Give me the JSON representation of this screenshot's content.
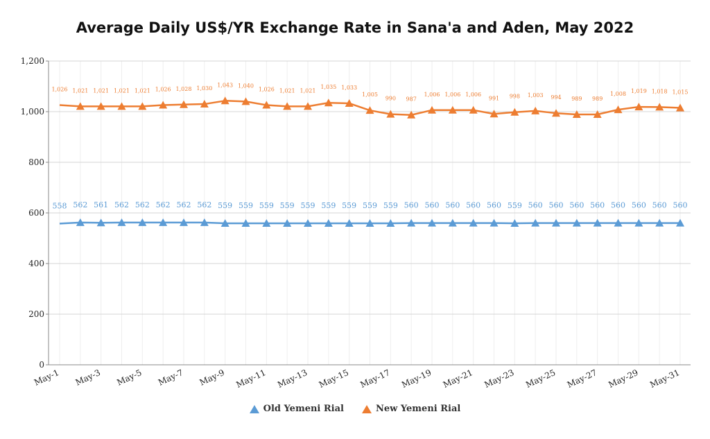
{
  "chart_data": {
    "type": "line",
    "title": "Average Daily US$/YR Exchange Rate in Sana'a and Aden, May 2022",
    "xlabel": "",
    "ylabel": "",
    "ylim": [
      0,
      1200
    ],
    "yticks": [
      0,
      200,
      400,
      600,
      800,
      1000,
      1200
    ],
    "ytick_labels": [
      "0",
      "200",
      "400",
      "600",
      "800",
      "1,000",
      "1,200"
    ],
    "categories": [
      "May-1",
      "May-2",
      "May-3",
      "May-4",
      "May-5",
      "May-6",
      "May-7",
      "May-8",
      "May-9",
      "May-10",
      "May-11",
      "May-12",
      "May-13",
      "May-14",
      "May-15",
      "May-16",
      "May-17",
      "May-18",
      "May-19",
      "May-20",
      "May-21",
      "May-22",
      "May-23",
      "May-24",
      "May-25",
      "May-26",
      "May-27",
      "May-28",
      "May-29",
      "May-30",
      "May-31"
    ],
    "xtick_labels": [
      "May-1",
      "May-3",
      "May-5",
      "May-7",
      "May-9",
      "May-11",
      "May-13",
      "May-15",
      "May-17",
      "May-19",
      "May-21",
      "May-23",
      "May-25",
      "May-27",
      "May-29",
      "May-31"
    ],
    "grid": true,
    "legend_position": "bottom",
    "series": [
      {
        "name": "Old Yemeni Rial",
        "color": "#5b9bd5",
        "values": [
          558,
          562,
          561,
          562,
          562,
          562,
          562,
          562,
          559,
          559,
          559,
          559,
          559,
          559,
          559,
          559,
          559,
          560,
          560,
          560,
          560,
          560,
          559,
          560,
          560,
          560,
          560,
          560,
          560,
          560,
          560
        ],
        "labels": [
          "558",
          "562",
          "561",
          "562",
          "562",
          "562",
          "562",
          "562",
          "559",
          "559",
          "559",
          "559",
          "559",
          "559",
          "559",
          "559",
          "559",
          "560",
          "560",
          "560",
          "560",
          "560",
          "559",
          "560",
          "560",
          "560",
          "560",
          "560",
          "560",
          "560",
          "560"
        ]
      },
      {
        "name": "New Yemeni Rial",
        "color": "#ed7d31",
        "values": [
          1026,
          1021,
          1021,
          1021,
          1021,
          1026,
          1028,
          1030,
          1043,
          1040,
          1026,
          1021,
          1021,
          1035,
          1033,
          1005,
          990,
          987,
          1006,
          1006,
          1006,
          991,
          998,
          1003,
          994,
          989,
          989,
          1008,
          1019,
          1018,
          1015
        ],
        "labels": [
          "1,026",
          "1,021",
          "1,021",
          "1,021",
          "1,021",
          "1,026",
          "1,028",
          "1,030",
          "1,043",
          "1,040",
          "1,026",
          "1,021",
          "1,021",
          "1,035",
          "1,033",
          "1,005",
          "990",
          "987",
          "1,006",
          "1,006",
          "1,006",
          "991",
          "998",
          "1,003",
          "994",
          "989",
          "989",
          "1,008",
          "1,019",
          "1,018",
          "1,015"
        ]
      }
    ]
  }
}
